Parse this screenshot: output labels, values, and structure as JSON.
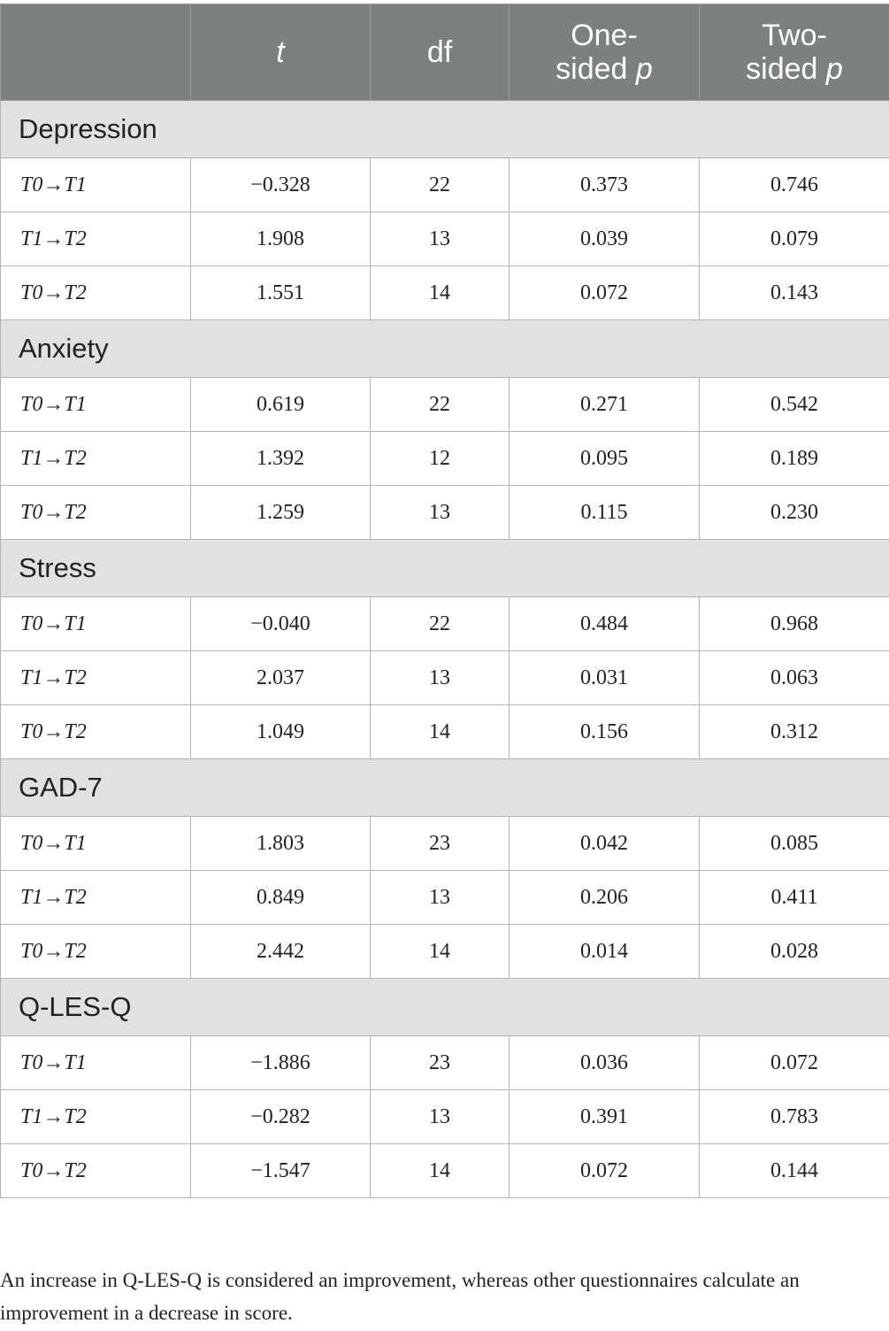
{
  "table": {
    "headers": {
      "blank": "",
      "t": "t",
      "df": "df",
      "one_sided_line1": "One-",
      "one_sided_line2": "sided",
      "two_sided_line1": "Two-",
      "two_sided_line2": "sided",
      "p": "p"
    },
    "groups": [
      {
        "name": "Depression",
        "rows": [
          {
            "comparison": "T0→T1",
            "t": "−0.328",
            "df": "22",
            "one_sided_p": "0.373",
            "two_sided_p": "0.746"
          },
          {
            "comparison": "T1→T2",
            "t": "1.908",
            "df": "13",
            "one_sided_p": "0.039",
            "two_sided_p": "0.079"
          },
          {
            "comparison": "T0→T2",
            "t": "1.551",
            "df": "14",
            "one_sided_p": "0.072",
            "two_sided_p": "0.143"
          }
        ]
      },
      {
        "name": "Anxiety",
        "rows": [
          {
            "comparison": "T0→T1",
            "t": "0.619",
            "df": "22",
            "one_sided_p": "0.271",
            "two_sided_p": "0.542"
          },
          {
            "comparison": "T1→T2",
            "t": "1.392",
            "df": "12",
            "one_sided_p": "0.095",
            "two_sided_p": "0.189"
          },
          {
            "comparison": "T0→T2",
            "t": "1.259",
            "df": "13",
            "one_sided_p": "0.115",
            "two_sided_p": "0.230"
          }
        ]
      },
      {
        "name": "Stress",
        "rows": [
          {
            "comparison": "T0→T1",
            "t": "−0.040",
            "df": "22",
            "one_sided_p": "0.484",
            "two_sided_p": "0.968"
          },
          {
            "comparison": "T1→T2",
            "t": "2.037",
            "df": "13",
            "one_sided_p": "0.031",
            "two_sided_p": "0.063"
          },
          {
            "comparison": "T0→T2",
            "t": "1.049",
            "df": "14",
            "one_sided_p": "0.156",
            "two_sided_p": "0.312"
          }
        ]
      },
      {
        "name": "GAD-7",
        "rows": [
          {
            "comparison": "T0→T1",
            "t": "1.803",
            "df": "23",
            "one_sided_p": "0.042",
            "two_sided_p": "0.085"
          },
          {
            "comparison": "T1→T2",
            "t": "0.849",
            "df": "13",
            "one_sided_p": "0.206",
            "two_sided_p": "0.411"
          },
          {
            "comparison": "T0→T2",
            "t": "2.442",
            "df": "14",
            "one_sided_p": "0.014",
            "two_sided_p": "0.028"
          }
        ]
      },
      {
        "name": "Q-LES-Q",
        "rows": [
          {
            "comparison": "T0→T1",
            "t": "−1.886",
            "df": "23",
            "one_sided_p": "0.036",
            "two_sided_p": "0.072"
          },
          {
            "comparison": "T1→T2",
            "t": "−0.282",
            "df": "13",
            "one_sided_p": "0.391",
            "two_sided_p": "0.783"
          },
          {
            "comparison": "T0→T2",
            "t": "−1.547",
            "df": "14",
            "one_sided_p": "0.072",
            "two_sided_p": "0.144"
          }
        ]
      }
    ]
  },
  "footnote": "An increase in Q-LES-Q is considered an improvement, whereas other questionnaires calculate an improvement in a decrease in score.",
  "colors": {
    "header_bg": "#7c807f",
    "group_bg": "#e1e1e1",
    "border": "#b3b3b3"
  }
}
